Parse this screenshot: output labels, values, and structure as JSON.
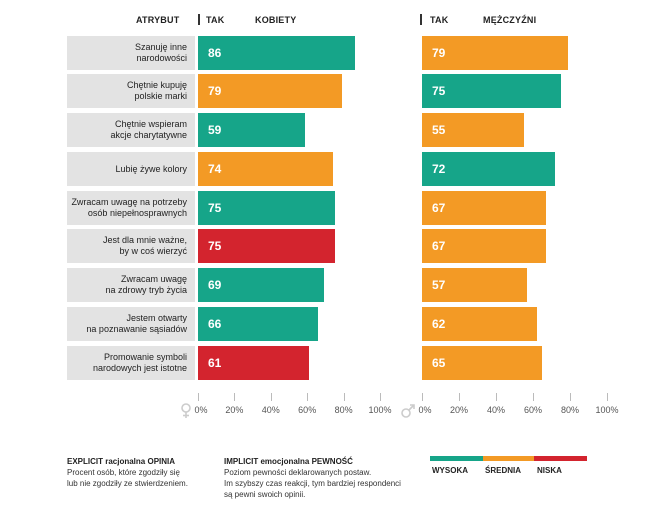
{
  "headers": {
    "attribute": "ATRYBUT",
    "women_tak": "TAK",
    "women_group": "KOBIETY",
    "men_tak": "TAK",
    "men_group": "MĘŻCZYŹNI"
  },
  "attributes": [
    "Szanuję inne\nnarodowości",
    "Chętnie kupuję\npolskie marki",
    "Chętnie wspieram\nakcje charytatywne",
    "Lubię żywe kolory",
    "Zwracam uwagę na potrzeby\nosób niepełnosprawnych",
    "Jest dla mnie ważne,\nby w coś wierzyć",
    "Zwracam uwagę\nna zdrowy tryb życia",
    "Jestem otwarty\nna poznawanie sąsiadów",
    "Promowanie symboli\nnarodowych jest istotne"
  ],
  "colors": {
    "wysoka": "#16a589",
    "srednia": "#f39a25",
    "niska": "#d3242e",
    "attr_bg": "#e3e3e3",
    "axis_text": "#555555"
  },
  "chart_data": [
    {
      "type": "bar",
      "orientation": "horizontal",
      "title": "KOBIETY",
      "categories": [
        "Szanuję inne narodowości",
        "Chętnie kupuję polskie marki",
        "Chętnie wspieram akcje charytatywne",
        "Lubię żywe kolory",
        "Zwracam uwagę na potrzeby osób niepełnosprawnych",
        "Jest dla mnie ważne, by w coś wierzyć",
        "Zwracam uwagę na zdrowy tryb życia",
        "Jestem otwarty na poznawanie sąsiadów",
        "Promowanie symboli narodowych jest istotne"
      ],
      "values": [
        86,
        79,
        59,
        74,
        75,
        75,
        69,
        66,
        61
      ],
      "certainty": [
        "wysoka",
        "srednia",
        "wysoka",
        "srednia",
        "wysoka",
        "niska",
        "wysoka",
        "wysoka",
        "niska"
      ],
      "xlim": [
        0,
        100
      ],
      "xticks": [
        "0%",
        "20%",
        "40%",
        "60%",
        "80%",
        "100%"
      ]
    },
    {
      "type": "bar",
      "orientation": "horizontal",
      "title": "MĘŻCZYŹNI",
      "categories": [
        "Szanuję inne narodowości",
        "Chętnie kupuję polskie marki",
        "Chętnie wspieram akcje charytatywne",
        "Lubię żywe kolory",
        "Zwracam uwagę na potrzeby osób niepełnosprawnych",
        "Jest dla mnie ważne, by w coś wierzyć",
        "Zwracam uwagę na zdrowy tryb życia",
        "Jestem otwarty na poznawanie sąsiadów",
        "Promowanie symboli narodowych jest istotne"
      ],
      "values": [
        79,
        75,
        55,
        72,
        67,
        67,
        57,
        62,
        65
      ],
      "certainty": [
        "srednia",
        "wysoka",
        "srednia",
        "wysoka",
        "srednia",
        "srednia",
        "srednia",
        "srednia",
        "srednia"
      ],
      "xlim": [
        0,
        100
      ],
      "xticks": [
        "0%",
        "20%",
        "40%",
        "60%",
        "80%",
        "100%"
      ]
    }
  ],
  "legend": {
    "explicit_title": "EXPLICIT racjonalna OPINIA",
    "explicit_desc": "Procent osób, które zgodziły się\nlub nie zgodziły ze stwierdzeniem.",
    "implicit_title": "IMPLICIT emocjonalna PEWNOŚĆ",
    "implicit_desc": "Poziom pewności deklarowanych postaw.\nIm szybszy czas reakcji, tym bardziej respondenci\nsą pewni swoich opinii.",
    "levels": [
      {
        "key": "wysoka",
        "label": "WYSOKA"
      },
      {
        "key": "srednia",
        "label": "ŚREDNIA"
      },
      {
        "key": "niska",
        "label": "NISKA"
      }
    ]
  }
}
